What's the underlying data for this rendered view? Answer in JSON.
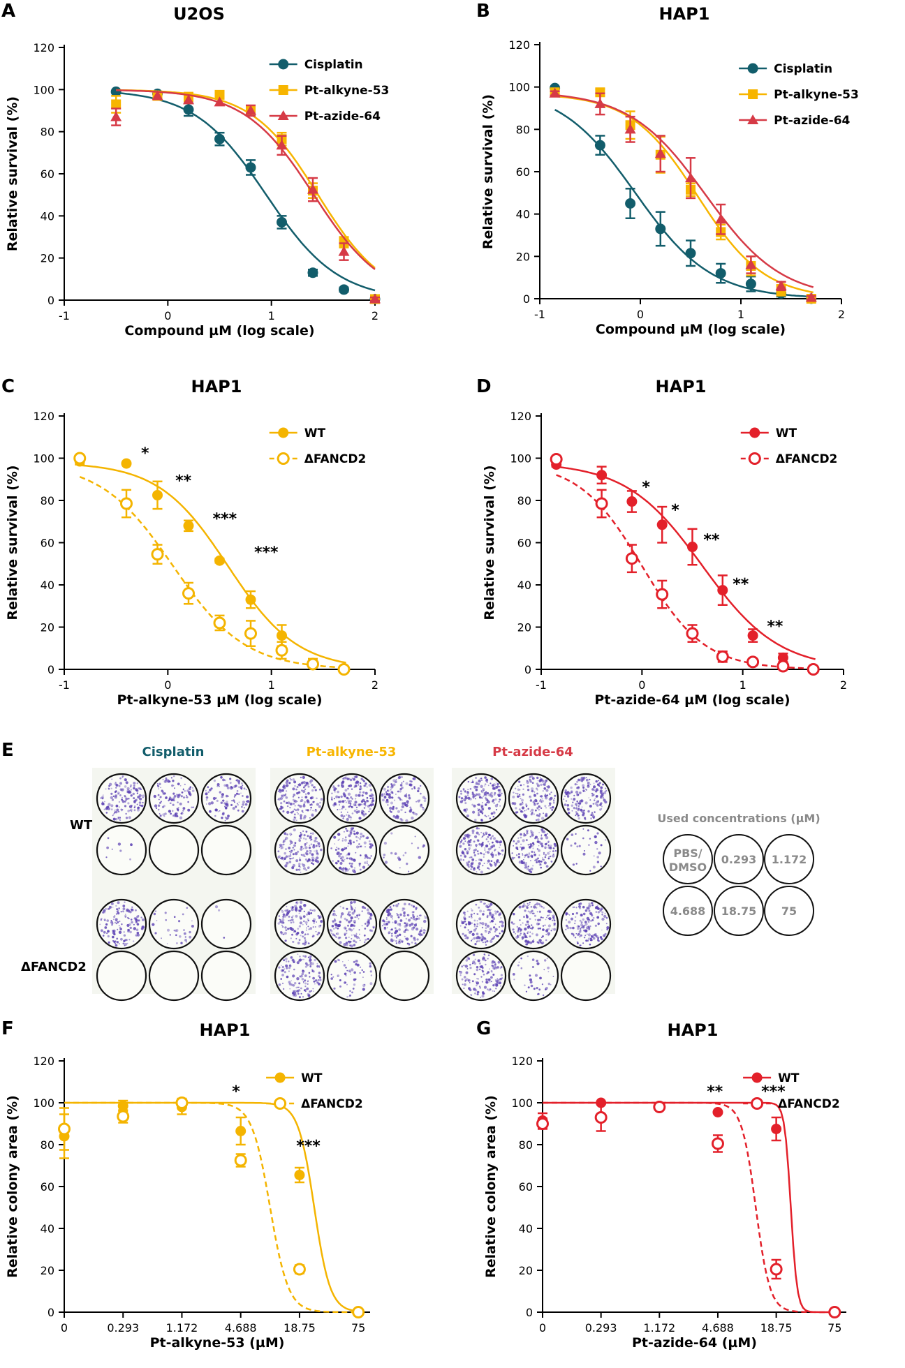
{
  "colors": {
    "cisplatin": "#125d6b",
    "alkyne": "#f7b500",
    "alkyne_line": "#f4b400",
    "azide": "#d63a46",
    "azide_red": "#e3202a",
    "purple": "#5a3fb3",
    "gray_text": "#8a8a8a"
  },
  "chart_data": [
    {
      "panel": "A",
      "type": "scatter",
      "title": "U2OS",
      "xlabel": "Compound µM (log scale)",
      "ylabel": "Relative survival (%)",
      "xlim": [
        -1,
        2
      ],
      "ylim": [
        0,
        120
      ],
      "xticks": [
        "-1",
        "0",
        "1",
        "2"
      ],
      "yticks": [
        "0",
        "20",
        "40",
        "60",
        "80",
        "100",
        "120"
      ],
      "legend_position": "top-right",
      "series": [
        {
          "name": "Cisplatin",
          "color": "#125d6b",
          "marker": "circle",
          "fit": "solid",
          "fit_top": 100,
          "ic50_log": 0.95,
          "hill": 1.25,
          "points": [
            [
              -0.5,
              99,
              0
            ],
            [
              -0.1,
              98,
              0
            ],
            [
              0.2,
              90.5,
              3
            ],
            [
              0.5,
              76.5,
              3
            ],
            [
              0.8,
              63,
              3.5
            ],
            [
              1.1,
              37,
              3
            ],
            [
              1.4,
              13,
              1.5
            ],
            [
              1.7,
              5,
              1
            ],
            [
              2.0,
              0.5,
              0.8
            ]
          ]
        },
        {
          "name": "Pt-alkyne-53",
          "color": "#f7b500",
          "marker": "square",
          "fit": "solid",
          "fit_top": 100,
          "ic50_log": 1.45,
          "hill": 1.35,
          "points": [
            [
              -0.5,
              93,
              4
            ],
            [
              -0.1,
              97,
              0
            ],
            [
              0.2,
              96.5,
              2
            ],
            [
              0.5,
              97.5,
              1.5
            ],
            [
              0.8,
              90,
              2
            ],
            [
              1.1,
              76.5,
              3
            ],
            [
              1.4,
              52,
              3.5
            ],
            [
              1.7,
              27.5,
              2.5
            ],
            [
              2.0,
              0.5,
              0.8
            ]
          ]
        },
        {
          "name": "Pt-azide-64",
          "color": "#d63a46",
          "marker": "triangle",
          "fit": "solid",
          "fit_top": 100,
          "ic50_log": 1.41,
          "hill": 1.3,
          "points": [
            [
              -0.5,
              87,
              4
            ],
            [
              -0.1,
              97,
              0
            ],
            [
              0.2,
              95,
              0
            ],
            [
              0.5,
              94,
              0
            ],
            [
              0.8,
              90,
              2.5
            ],
            [
              1.1,
              73.5,
              4.5
            ],
            [
              1.4,
              52.5,
              5.5
            ],
            [
              1.7,
              23,
              4
            ],
            [
              2.0,
              0.5,
              0.8
            ]
          ]
        }
      ],
      "annotations": []
    },
    {
      "panel": "B",
      "type": "scatter",
      "title": "HAP1",
      "xlabel": "Compound µM (log scale)",
      "ylabel": "Relative survival (%)",
      "xlim": [
        -1,
        2
      ],
      "ylim": [
        0,
        120
      ],
      "xticks": [
        "-1",
        "0",
        "1",
        "2"
      ],
      "yticks": [
        "0",
        "20",
        "40",
        "60",
        "80",
        "100",
        "120"
      ],
      "legend_position": "top-right",
      "series": [
        {
          "name": "Cisplatin",
          "color": "#125d6b",
          "marker": "circle",
          "fit": "solid",
          "fit_top": 100,
          "ic50_log": -0.05,
          "hill": 1.15,
          "fit_from": -0.85,
          "points": [
            [
              -0.85,
              99.5,
              0
            ],
            [
              -0.4,
              72.5,
              4.5
            ],
            [
              -0.1,
              45,
              7
            ],
            [
              0.2,
              33,
              8
            ],
            [
              0.5,
              21.5,
              6
            ],
            [
              0.8,
              12,
              4.5
            ],
            [
              1.1,
              7,
              3.5
            ],
            [
              1.4,
              2.5,
              1.5
            ],
            [
              1.7,
              0,
              0.8
            ]
          ]
        },
        {
          "name": "Pt-alkyne-53",
          "color": "#f7b500",
          "marker": "square",
          "fit": "solid",
          "fit_top": 97,
          "ic50_log": 0.57,
          "hill": 1.3,
          "fit_from": -0.85,
          "points": [
            [
              -0.85,
              97.5,
              1.5
            ],
            [
              -0.4,
              97.5,
              1.5
            ],
            [
              -0.1,
              82,
              6.5
            ],
            [
              0.2,
              68,
              8.5
            ],
            [
              0.5,
              51.5,
              3
            ],
            [
              0.8,
              31.5,
              3.5
            ],
            [
              1.1,
              15.5,
              4.5
            ],
            [
              1.4,
              4,
              2.5
            ],
            [
              1.7,
              0,
              0.8
            ]
          ]
        },
        {
          "name": "Pt-azide-64",
          "color": "#d63a46",
          "marker": "triangle",
          "fit": "solid",
          "fit_top": 98,
          "ic50_log": 0.65,
          "hill": 1.15,
          "fit_from": -0.85,
          "points": [
            [
              -0.85,
              97,
              1
            ],
            [
              -0.4,
              92,
              5
            ],
            [
              -0.1,
              80,
              6
            ],
            [
              0.2,
              68.5,
              8.5
            ],
            [
              0.5,
              57,
              9.5
            ],
            [
              0.8,
              37.5,
              7
            ],
            [
              1.1,
              16,
              4
            ],
            [
              1.4,
              6,
              2
            ],
            [
              1.7,
              0.5,
              0.8
            ]
          ]
        }
      ],
      "annotations": []
    },
    {
      "panel": "C",
      "type": "scatter",
      "title": "HAP1",
      "xlabel": "Pt-alkyne-53 µM (log scale)",
      "ylabel": "Relative survival (%)",
      "xlim": [
        -1,
        2
      ],
      "ylim": [
        0,
        120
      ],
      "xticks": [
        "-1",
        "0",
        "1",
        "2"
      ],
      "yticks": [
        "0",
        "20",
        "40",
        "60",
        "80",
        "100",
        "120"
      ],
      "legend_position": "top-right",
      "series": [
        {
          "name": "WT",
          "color": "#f4b400",
          "marker": "circle",
          "fit": "solid",
          "fit_top": 98,
          "ic50_log": 0.58,
          "hill": 1.3,
          "fit_from": -0.85,
          "points": [
            [
              -0.85,
              98.5,
              1.5
            ],
            [
              -0.4,
              97.5,
              0
            ],
            [
              -0.1,
              82.5,
              6.5
            ],
            [
              0.2,
              68,
              2.5
            ],
            [
              0.5,
              51.5,
              1
            ],
            [
              0.8,
              33,
              4
            ],
            [
              1.1,
              16,
              5
            ],
            [
              1.4,
              3,
              2
            ],
            [
              1.7,
              0,
              0.8
            ]
          ]
        },
        {
          "name": "ΔFANCD2",
          "color": "#f4b400",
          "marker": "open-circle",
          "fit": "dashed",
          "fit_top": 98,
          "ic50_log": 0.05,
          "hill": 1.25,
          "fit_from": -0.85,
          "points": [
            [
              -0.85,
              100,
              1
            ],
            [
              -0.4,
              78.5,
              6.5
            ],
            [
              -0.1,
              54.5,
              4.5
            ],
            [
              0.2,
              36,
              5
            ],
            [
              0.5,
              22,
              3.5
            ],
            [
              0.8,
              17,
              6
            ],
            [
              1.1,
              9,
              4
            ],
            [
              1.4,
              2.5,
              1.5
            ],
            [
              1.7,
              0,
              0.8
            ]
          ]
        }
      ],
      "annotations": [
        {
          "text": "*",
          "x": -0.22,
          "y": 100
        },
        {
          "text": "**",
          "x": 0.15,
          "y": 87
        },
        {
          "text": "***",
          "x": 0.55,
          "y": 69
        },
        {
          "text": "***",
          "x": 0.95,
          "y": 53
        }
      ]
    },
    {
      "panel": "D",
      "type": "scatter",
      "title": "HAP1",
      "xlabel": "Pt-azide-64 µM (log scale)",
      "ylabel": "Relative survival (%)",
      "xlim": [
        -1,
        2
      ],
      "ylim": [
        0,
        120
      ],
      "xticks": [
        "-1",
        "0",
        "1",
        "2"
      ],
      "yticks": [
        "0",
        "20",
        "40",
        "60",
        "80",
        "100",
        "120"
      ],
      "legend_position": "top-right",
      "series": [
        {
          "name": "WT",
          "color": "#e3202a",
          "marker": "circle",
          "fit": "solid",
          "fit_top": 98,
          "ic50_log": 0.6,
          "hill": 1.15,
          "fit_from": -0.85,
          "points": [
            [
              -0.85,
              97,
              1
            ],
            [
              -0.4,
              92,
              4
            ],
            [
              -0.1,
              79.5,
              5
            ],
            [
              0.2,
              68.5,
              8.5
            ],
            [
              0.5,
              58,
              8.5
            ],
            [
              0.8,
              37.5,
              7
            ],
            [
              1.1,
              16,
              3
            ],
            [
              1.4,
              5.5,
              2
            ],
            [
              1.7,
              0,
              0.8
            ]
          ]
        },
        {
          "name": "ΔFANCD2",
          "color": "#e3202a",
          "marker": "open-circle",
          "fit": "dashed",
          "fit_top": 98,
          "ic50_log": 0.0,
          "hill": 1.4,
          "fit_from": -0.85,
          "points": [
            [
              -0.85,
              99.5,
              1
            ],
            [
              -0.4,
              78.5,
              6.5
            ],
            [
              -0.1,
              52.5,
              6.5
            ],
            [
              0.2,
              35.5,
              6.5
            ],
            [
              0.5,
              17,
              4
            ],
            [
              0.8,
              6,
              2.5
            ],
            [
              1.1,
              3.5,
              1.5
            ],
            [
              1.4,
              1.5,
              1
            ],
            [
              1.7,
              0,
              0.8
            ]
          ]
        }
      ],
      "annotations": [
        {
          "text": "*",
          "x": 0.04,
          "y": 84
        },
        {
          "text": "*",
          "x": 0.33,
          "y": 73
        },
        {
          "text": "**",
          "x": 0.69,
          "y": 59
        },
        {
          "text": "**",
          "x": 0.98,
          "y": 38
        },
        {
          "text": "**",
          "x": 1.32,
          "y": 18
        }
      ]
    },
    {
      "panel": "F",
      "type": "scatter",
      "title": "HAP1",
      "xlabel": "Pt-alkyne-53 (µM)",
      "ylabel": "Relative colony area (%)",
      "xlim": [
        0,
        5.2
      ],
      "ylim": [
        0,
        120
      ],
      "xticks": [
        "0",
        "0.293",
        "1.172",
        "4.688",
        "18.75",
        "75"
      ],
      "xtick_positions": [
        0,
        1,
        2,
        3,
        4,
        5
      ],
      "yticks": [
        "0",
        "20",
        "40",
        "60",
        "80",
        "100",
        "120"
      ],
      "legend_position": "top-right",
      "series": [
        {
          "name": "WT",
          "color": "#f4b400",
          "marker": "circle",
          "fit": "solid",
          "fit_top": 100,
          "ic50_idx": 4.25,
          "hill": 3.2,
          "points": [
            [
              0,
              84,
              10.5
            ],
            [
              1,
              98.5,
              2.5
            ],
            [
              2,
              98,
              3.5
            ],
            [
              3,
              86.5,
              6.5
            ],
            [
              4,
              65.5,
              3.5
            ],
            [
              5,
              0,
              0
            ]
          ]
        },
        {
          "name": "ΔFANCD2",
          "color": "#f4b400",
          "marker": "open-circle",
          "fit": "dashed",
          "fit_top": 100,
          "ic50_idx": 3.5,
          "hill": 2.8,
          "points": [
            [
              0,
              87.5,
              10
            ],
            [
              1,
              93.5,
              3
            ],
            [
              2,
              100,
              2
            ],
            [
              3,
              72.5,
              3
            ],
            [
              4,
              20.5,
              2
            ],
            [
              5,
              0,
              0
            ]
          ]
        }
      ],
      "annotations": [
        {
          "text": "*",
          "x": 2.92,
          "y": 103
        },
        {
          "text": "***",
          "x": 4.15,
          "y": 77
        }
      ]
    },
    {
      "panel": "G",
      "type": "scatter",
      "title": "HAP1",
      "xlabel": "Pt-azide-64 (µM)",
      "ylabel": "Relative colony area (%)",
      "xlim": [
        0,
        5.2
      ],
      "ylim": [
        0,
        120
      ],
      "xticks": [
        "0",
        "0.293",
        "1.172",
        "4.688",
        "18.75",
        "75"
      ],
      "xtick_positions": [
        0,
        1,
        2,
        3,
        4,
        5
      ],
      "yticks": [
        "0",
        "20",
        "40",
        "60",
        "80",
        "100",
        "120"
      ],
      "legend_position": "top-right",
      "series": [
        {
          "name": "WT",
          "color": "#e3202a",
          "marker": "circle",
          "fit": "solid",
          "fit_top": 100,
          "ic50_idx": 4.25,
          "hill": 8,
          "points": [
            [
              0,
              91.5,
              3.5
            ],
            [
              1,
              100,
              0
            ],
            [
              2,
              98.5,
              1
            ],
            [
              3,
              95.5,
              0
            ],
            [
              4,
              87.5,
              5.5
            ],
            [
              5,
              0,
              0
            ]
          ]
        },
        {
          "name": "ΔFANCD2",
          "color": "#e3202a",
          "marker": "open-circle",
          "fit": "dashed",
          "fit_top": 100,
          "ic50_idx": 3.65,
          "hill": 3.6,
          "points": [
            [
              0,
              90,
              2.5
            ],
            [
              1,
              93,
              6.5
            ],
            [
              2,
              98,
              0
            ],
            [
              3,
              80.5,
              4
            ],
            [
              4,
              20.5,
              4.5
            ],
            [
              5,
              0,
              0
            ]
          ]
        }
      ],
      "annotations": [
        {
          "text": "**",
          "x": 2.95,
          "y": 103
        },
        {
          "text": "***",
          "x": 3.95,
          "y": 103
        }
      ]
    }
  ],
  "panel_e": {
    "letter": "E",
    "drugs": [
      {
        "name": "Cisplatin",
        "color": "#125d6b",
        "wt_density": [
          0.55,
          0.45,
          0.4,
          0.03,
          0.0,
          0.0
        ],
        "fancd2_density": [
          0.5,
          0.12,
          0.01,
          0.0,
          0.0,
          0.0
        ]
      },
      {
        "name": "Pt-alkyne-53",
        "color": "#f7b500",
        "wt_density": [
          0.55,
          0.6,
          0.45,
          0.55,
          0.5,
          0.08
        ],
        "fancd2_density": [
          0.55,
          0.55,
          0.55,
          0.5,
          0.2,
          0.0
        ]
      },
      {
        "name": "Pt-azide-64",
        "color": "#d63a46",
        "wt_density": [
          0.6,
          0.55,
          0.6,
          0.6,
          0.55,
          0.12
        ],
        "fancd2_density": [
          0.55,
          0.55,
          0.55,
          0.5,
          0.15,
          0.0
        ]
      }
    ],
    "rows": [
      "WT",
      "ΔFANCD2"
    ],
    "legend_title": "Used concentrations (µM)",
    "legend_values": [
      "PBS/\nDMSO",
      "0.293",
      "1.172",
      "4.688",
      "18.75",
      "75"
    ]
  },
  "panel_letters": [
    "A",
    "B",
    "C",
    "D",
    "E",
    "F",
    "G"
  ]
}
